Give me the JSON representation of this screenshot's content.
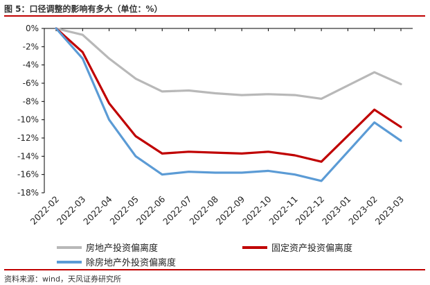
{
  "figure": {
    "title": "图 5：口径调整的影响有多大（单位：%）",
    "source": "资料来源：wind，天风证券研究所"
  },
  "colors": {
    "series1": "#b8b8b8",
    "series2": "#c00000",
    "series3": "#5b9bd5",
    "axis": "#000000",
    "rule": "#c00000"
  },
  "chart_data": {
    "type": "line",
    "title": "口径调整的影响有多大（单位：%）",
    "xlabel": "",
    "ylabel": "",
    "ylim": [
      -18,
      0
    ],
    "yticks": [
      0,
      -2,
      -4,
      -6,
      -8,
      -10,
      -12,
      -14,
      -16,
      -18
    ],
    "ytick_labels": [
      "0%",
      "-2%",
      "-4%",
      "-6%",
      "-8%",
      "-10%",
      "-12%",
      "-14%",
      "-16%",
      "-18%"
    ],
    "grid": false,
    "legend_position": "bottom",
    "categories": [
      "2022-02",
      "2022-03",
      "2022-04",
      "2022-05",
      "2022-06",
      "2022-07",
      "2022-08",
      "2022-09",
      "2022-10",
      "2022-11",
      "2022-12",
      "2023-01",
      "2023-02",
      "2023-03"
    ],
    "series": [
      {
        "name": "房地产投资偏离度",
        "values": [
          0,
          -0.7,
          -3.3,
          -5.5,
          -6.9,
          -6.8,
          -7.1,
          -7.3,
          -7.2,
          -7.3,
          -7.7,
          null,
          -4.8,
          -6.1
        ]
      },
      {
        "name": "固定资产投资偏离度",
        "values": [
          0,
          -2.6,
          -8.2,
          -11.8,
          -13.7,
          -13.5,
          -13.6,
          -13.7,
          -13.5,
          -13.9,
          -14.6,
          null,
          -8.9,
          -10.8
        ]
      },
      {
        "name": "除房地产外投资偏离度",
        "values": [
          0,
          -3.3,
          -10.0,
          -14.0,
          -16.0,
          -15.7,
          -15.8,
          -15.8,
          -15.6,
          -16.0,
          -16.7,
          null,
          -10.3,
          -12.3
        ]
      }
    ]
  }
}
